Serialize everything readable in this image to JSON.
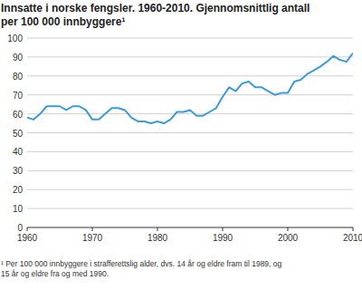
{
  "chart_data": {
    "type": "line",
    "title": "Innsatte i norske fengsler. 1960-2010. Gjennomsnittlig antall",
    "subtitle": "per 100 000 innbyggere¹",
    "annotations": [
      "¹ Per 100 000 innbyggere i strafferettslig alder, dvs. 14 år og eldre fram til 1989, og",
      "15 år og eldre fra og med 1990."
    ],
    "x": [
      1960,
      1961,
      1962,
      1963,
      1964,
      1965,
      1966,
      1967,
      1968,
      1969,
      1970,
      1971,
      1972,
      1973,
      1974,
      1975,
      1976,
      1977,
      1978,
      1979,
      1980,
      1981,
      1982,
      1983,
      1984,
      1985,
      1986,
      1987,
      1988,
      1989,
      1990,
      1991,
      1992,
      1993,
      1994,
      1995,
      1996,
      1997,
      1998,
      1999,
      2000,
      2001,
      2002,
      2003,
      2004,
      2005,
      2006,
      2007,
      2008,
      2009,
      2010
    ],
    "values": [
      58,
      57,
      60,
      64,
      64,
      64,
      62,
      64,
      64,
      62,
      57,
      57,
      60,
      63,
      63,
      62,
      58,
      56,
      56,
      55,
      56,
      55,
      57,
      61,
      61,
      62,
      59,
      59,
      61,
      63,
      69,
      74,
      72,
      76,
      77,
      74,
      74,
      72,
      70,
      71,
      71,
      77,
      78,
      81,
      83,
      85,
      87.5,
      90.5,
      88.5,
      87.5,
      92
    ],
    "color": "#3d9bd6",
    "xlim": [
      1960,
      2010
    ],
    "xticks": [
      1960,
      1970,
      1980,
      1990,
      2000,
      2010
    ],
    "ylim": [
      0,
      100
    ],
    "yticks": [
      0,
      10,
      20,
      30,
      40,
      50,
      60,
      70,
      80,
      90,
      100
    ],
    "grid": true
  }
}
